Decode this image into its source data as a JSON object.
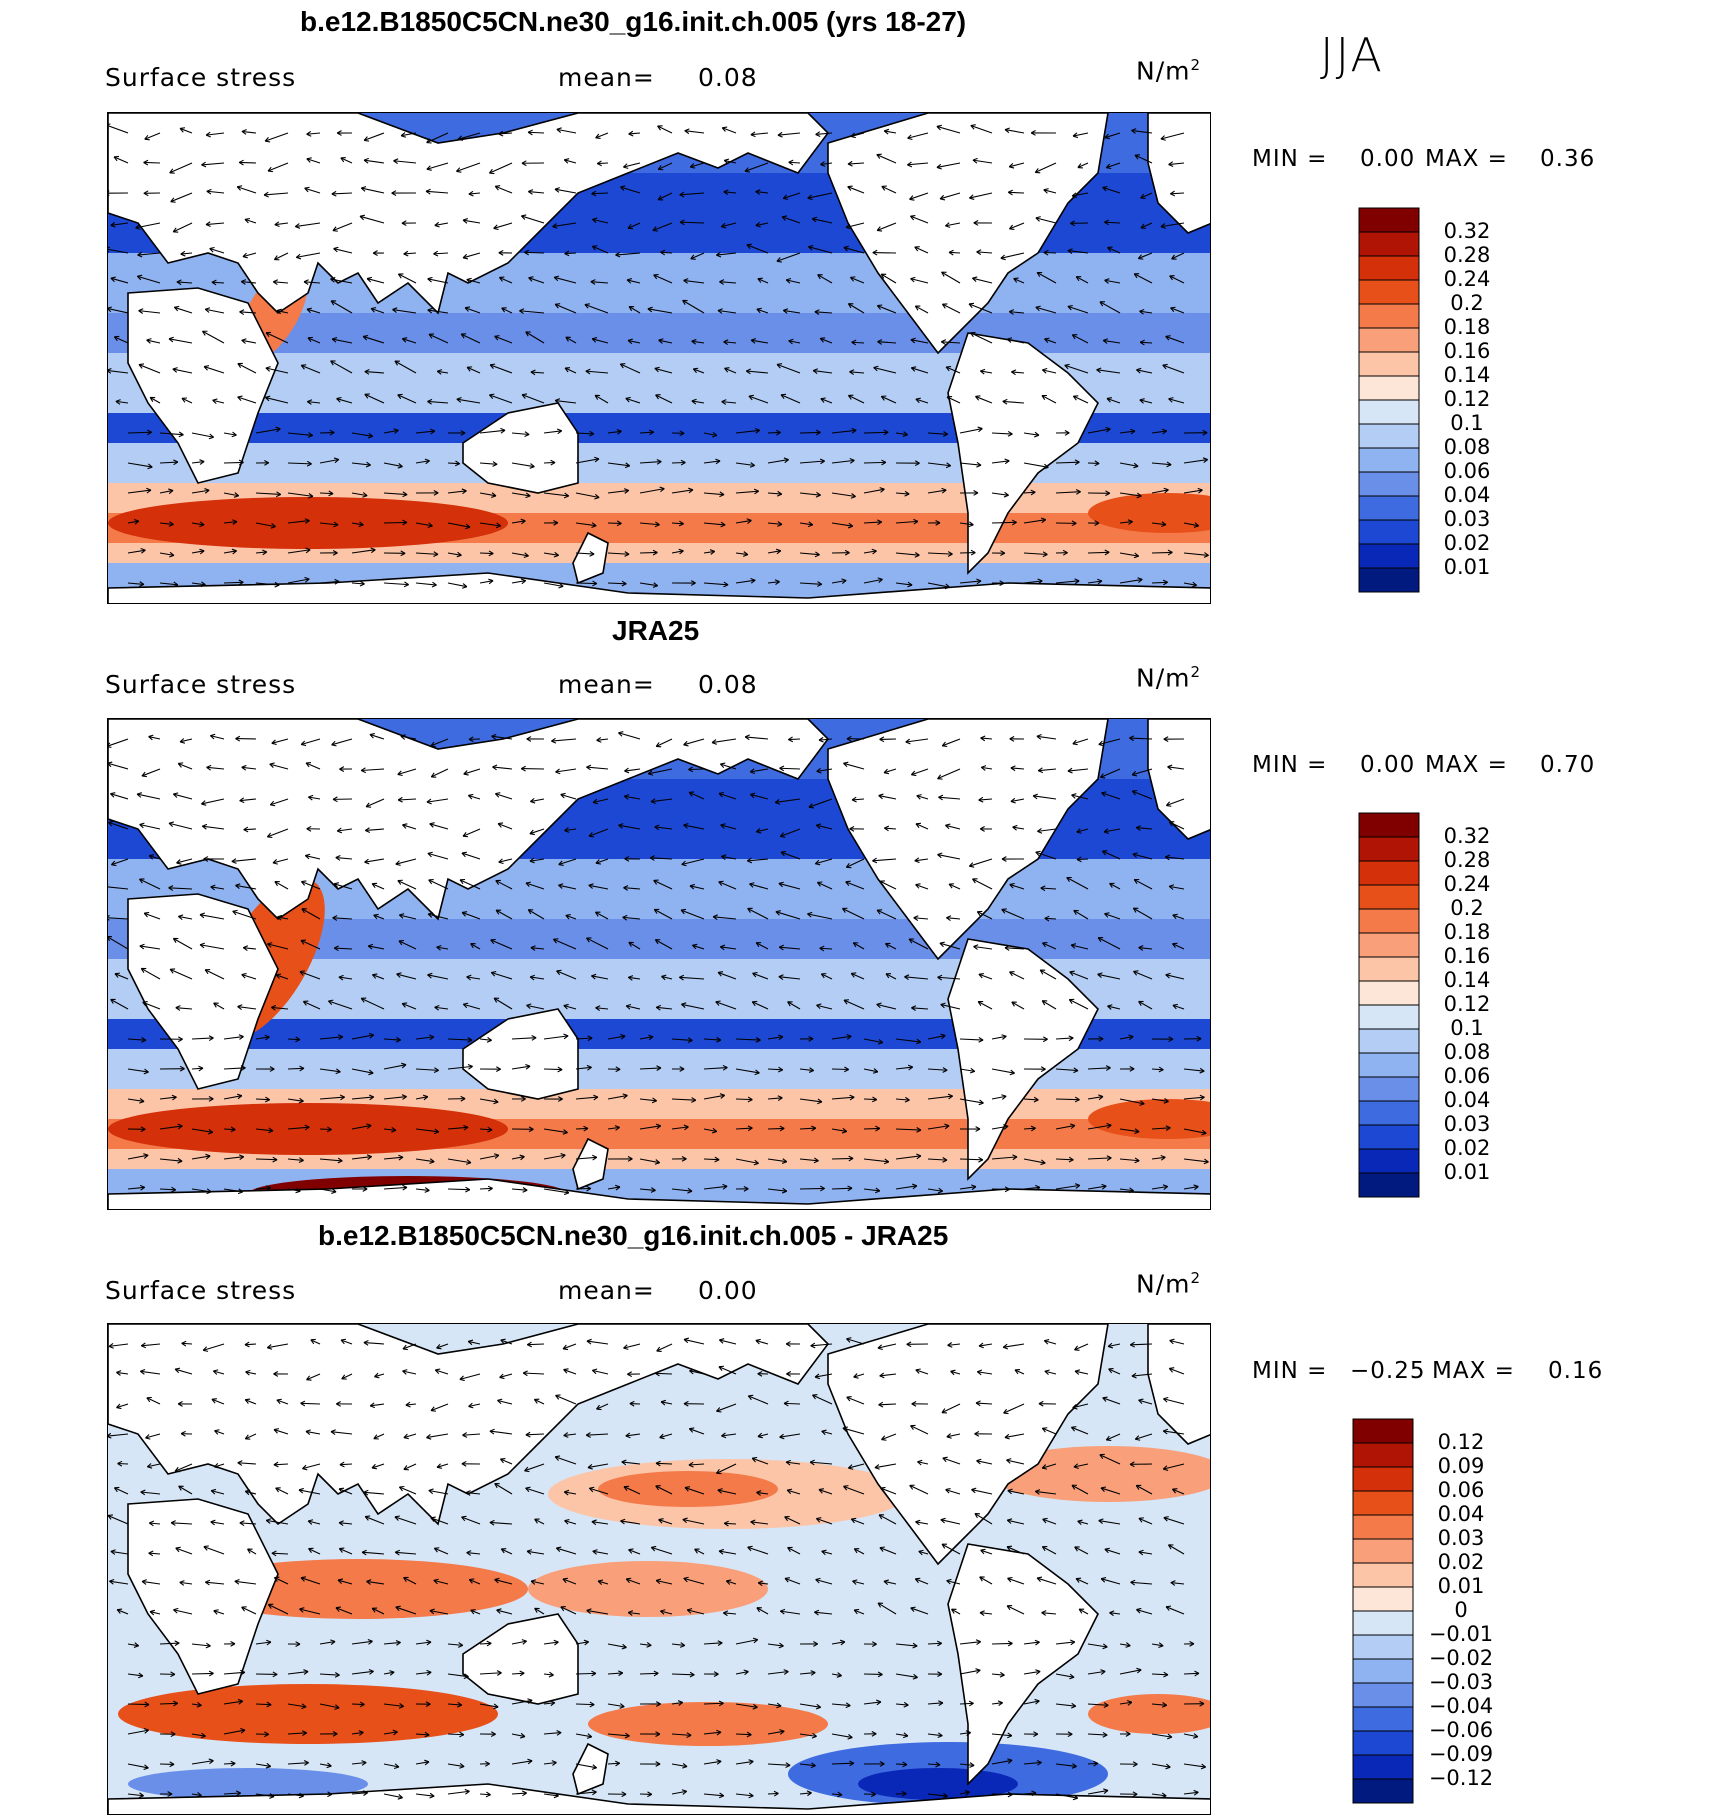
{
  "season": "JJA",
  "units_base": "N/m",
  "units_exp": "2",
  "panels": [
    {
      "title": "b.e12.B1850C5CN.ne30_g16.init.ch.005 (yrs 18-27)",
      "field": "Surface stress",
      "mean_label": "mean=",
      "mean_value": "0.08",
      "min_label": "MIN =",
      "min_value": "0.00",
      "max_label": "MAX =",
      "max_value": "0.36",
      "scheme": "abs"
    },
    {
      "title": "JRA25",
      "field": "Surface stress",
      "mean_label": "mean=",
      "mean_value": "0.08",
      "min_label": "MIN =",
      "min_value": "0.00",
      "max_label": "MAX =",
      "max_value": "0.70",
      "scheme": "abs"
    },
    {
      "title": "b.e12.B1850C5CN.ne30_g16.init.ch.005 - JRA25",
      "field": "Surface stress",
      "mean_label": "mean=",
      "mean_value": "0.00",
      "min_label": "MIN =",
      "min_value": "−0.25",
      "max_label": "MAX =",
      "max_value": "0.16",
      "scheme": "diff"
    }
  ],
  "chart_data": [
    {
      "type": "heatmap",
      "title": "b.e12.B1850C5CN.ne30_g16.init.ch.005 (yrs 18-27)",
      "variable": "Surface stress",
      "units": "N/m2",
      "season": "JJA",
      "mean": 0.08,
      "min": 0.0,
      "max": 0.36,
      "colorbar_levels": [
        "0.32",
        "0.28",
        "0.24",
        "0.2",
        "0.18",
        "0.16",
        "0.14",
        "0.12",
        "0.1",
        "0.08",
        "0.06",
        "0.04",
        "0.03",
        "0.02",
        "0.01"
      ],
      "colors": [
        "#800000",
        "#b01405",
        "#d4300a",
        "#e8501a",
        "#f47a4a",
        "#f9a07a",
        "#fcc5a8",
        "#fde6d8",
        "#d6e6f7",
        "#b3cdf4",
        "#8fb2f0",
        "#6a8fe8",
        "#3f6be0",
        "#1c48d4",
        "#0a28b8",
        "#001a80"
      ]
    },
    {
      "type": "heatmap",
      "title": "JRA25",
      "variable": "Surface stress",
      "units": "N/m2",
      "season": "JJA",
      "mean": 0.08,
      "min": 0.0,
      "max": 0.7,
      "colorbar_levels": [
        "0.32",
        "0.28",
        "0.24",
        "0.2",
        "0.18",
        "0.16",
        "0.14",
        "0.12",
        "0.1",
        "0.08",
        "0.06",
        "0.04",
        "0.03",
        "0.02",
        "0.01"
      ],
      "colors": [
        "#800000",
        "#b01405",
        "#d4300a",
        "#e8501a",
        "#f47a4a",
        "#f9a07a",
        "#fcc5a8",
        "#fde6d8",
        "#d6e6f7",
        "#b3cdf4",
        "#8fb2f0",
        "#6a8fe8",
        "#3f6be0",
        "#1c48d4",
        "#0a28b8",
        "#001a80"
      ]
    },
    {
      "type": "heatmap",
      "title": "b.e12.B1850C5CN.ne30_g16.init.ch.005 - JRA25",
      "variable": "Surface stress",
      "units": "N/m2",
      "season": "JJA",
      "mean": 0.0,
      "min": -0.25,
      "max": 0.16,
      "colorbar_levels": [
        "0.12",
        "0.09",
        "0.06",
        "0.04",
        "0.03",
        "0.02",
        "0.01",
        "0",
        "−0.01",
        "−0.02",
        "−0.03",
        "−0.04",
        "−0.06",
        "−0.09",
        "−0.12"
      ],
      "colors": [
        "#800000",
        "#b01405",
        "#d4300a",
        "#e8501a",
        "#f47a4a",
        "#f9a07a",
        "#fcc5a8",
        "#fde6d8",
        "#d6e6f7",
        "#b3cdf4",
        "#8fb2f0",
        "#6a8fe8",
        "#3f6be0",
        "#1c48d4",
        "#0a28b8",
        "#001a80"
      ]
    }
  ]
}
